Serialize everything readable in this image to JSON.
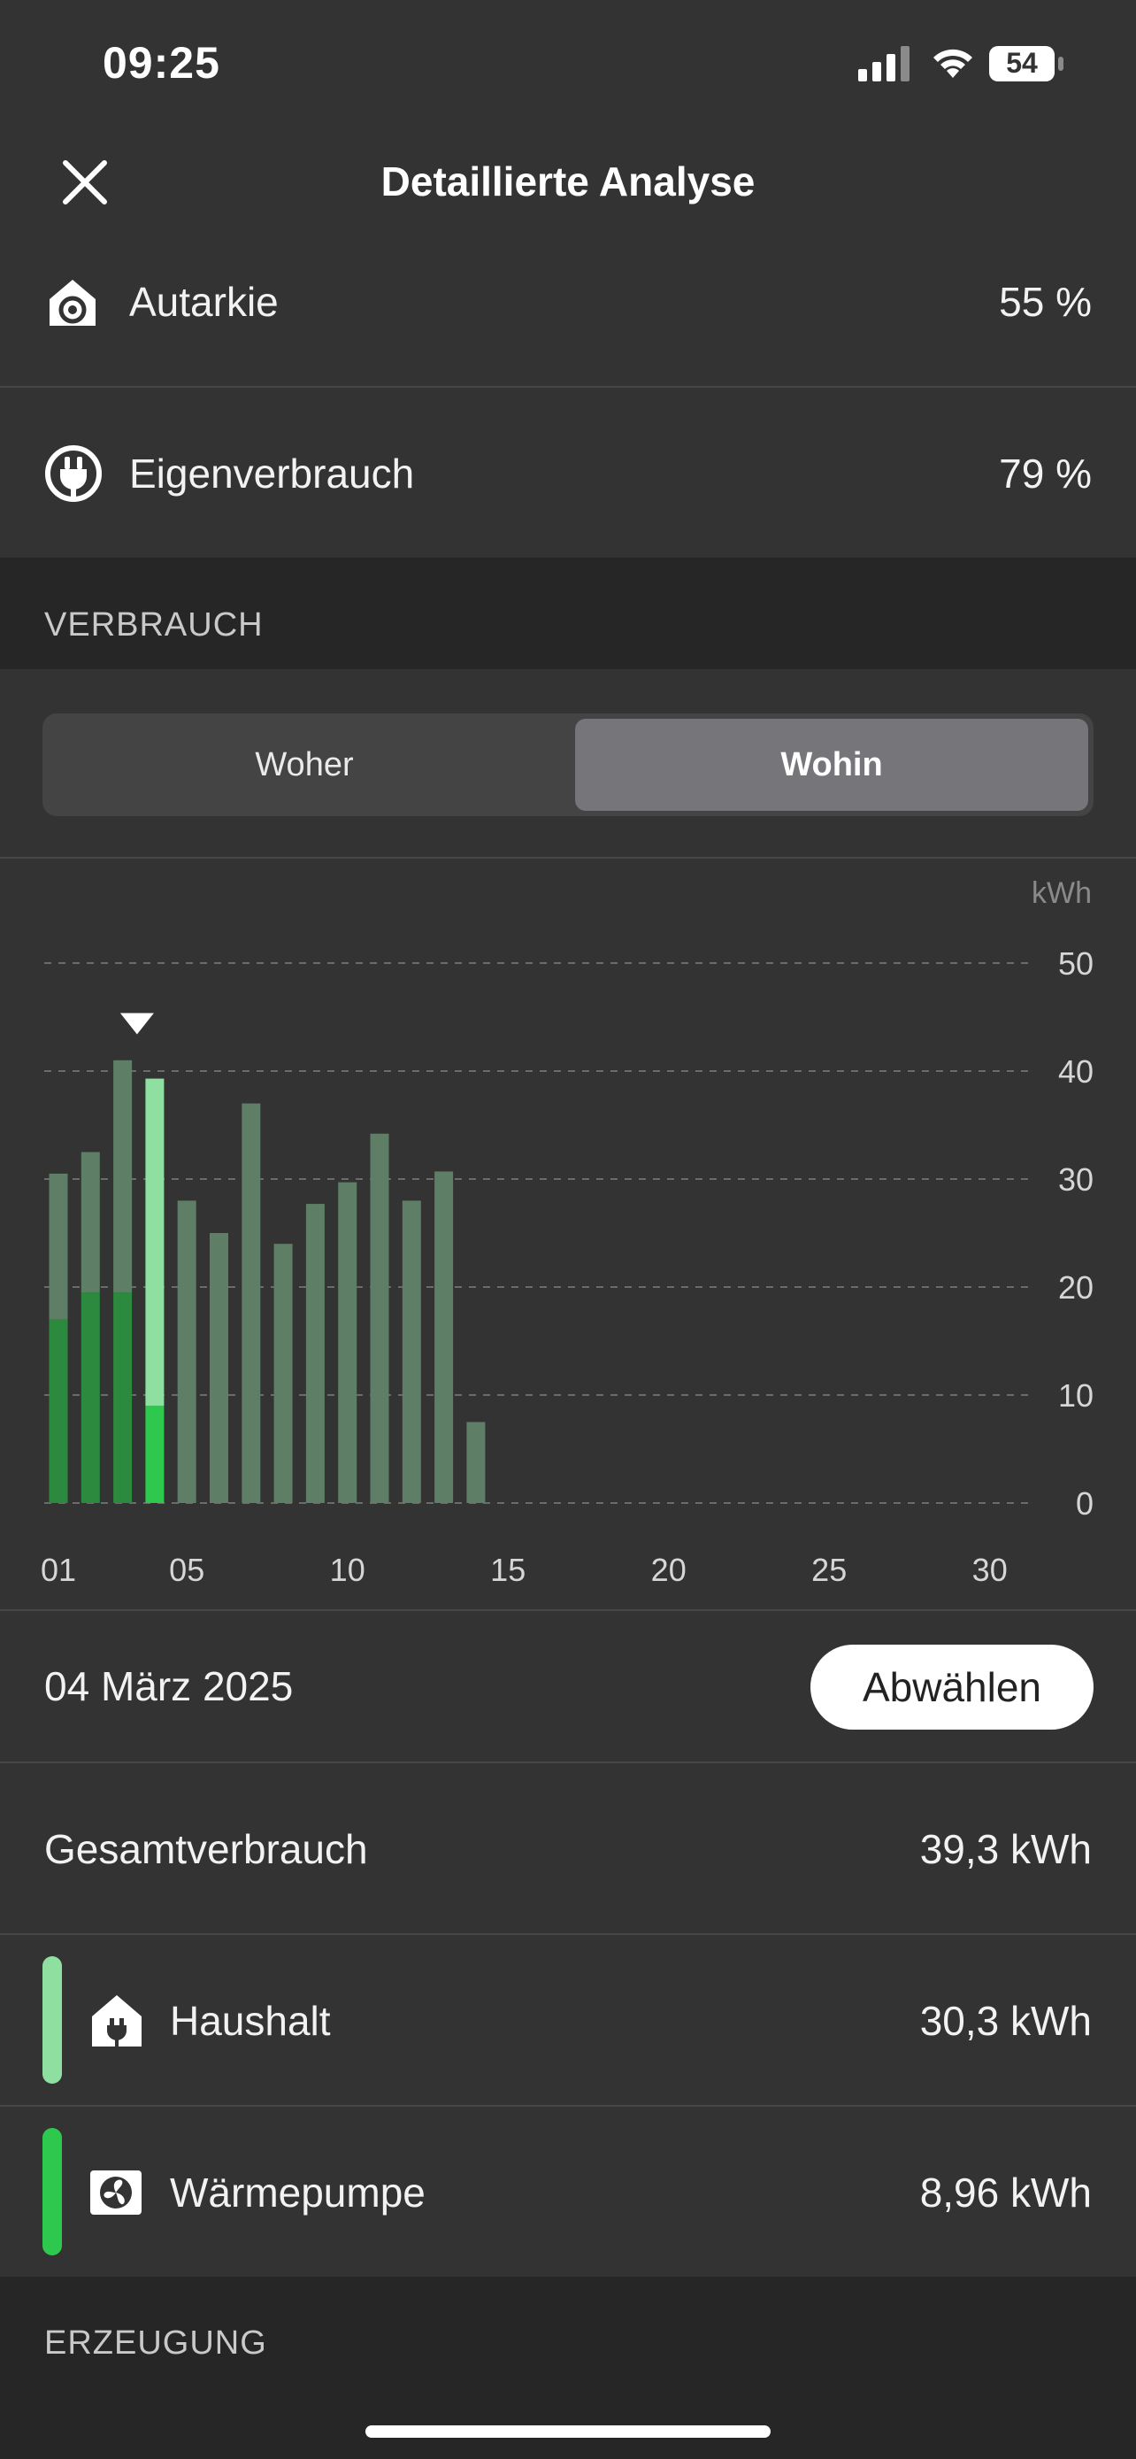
{
  "status_bar": {
    "time": "09:25",
    "battery": "54"
  },
  "header": {
    "title": "Detaillierte Analyse",
    "close_icon": "close-icon"
  },
  "metrics": [
    {
      "label": "Autarkie",
      "value": "55 %",
      "icon": "house-self-sufficiency-icon"
    },
    {
      "label": "Eigenverbrauch",
      "value": "79 %",
      "icon": "plug-icon"
    }
  ],
  "consumption": {
    "section_title": "VERBRAUCH",
    "segment": {
      "left": "Woher",
      "right": "Wohin",
      "selected": "Wohin"
    },
    "selected_date": "04 März 2025",
    "deselect_label": "Abwählen",
    "total_label": "Gesamtverbrauch",
    "total_value": "39,3 kWh",
    "items": [
      {
        "label": "Haushalt",
        "value": "30,3 kWh",
        "icon": "house-plug-icon",
        "color": "#8fe0a0"
      },
      {
        "label": "Wärmepumpe",
        "value": "8,96 kWh",
        "icon": "heat-pump-fan-icon",
        "color": "#2fc84e"
      }
    ]
  },
  "generation": {
    "section_title": "ERZEUGUNG"
  },
  "chart_data": {
    "type": "bar",
    "stacked": true,
    "unit": "kWh",
    "ylim": [
      0,
      50
    ],
    "y_ticks": [
      "0",
      "10",
      "20",
      "30",
      "40",
      "50"
    ],
    "x_ticks": [
      "01",
      "05",
      "10",
      "15",
      "20",
      "25",
      "30"
    ],
    "x_tick_days": [
      1,
      5,
      10,
      15,
      20,
      25,
      30
    ],
    "days": [
      1,
      2,
      3,
      4,
      5,
      6,
      7,
      8,
      9,
      10,
      11,
      12,
      13,
      14
    ],
    "selected_day": 4,
    "series": [
      {
        "values": [
          17,
          19.5,
          19.5,
          9,
          0,
          0,
          0,
          0,
          0,
          0,
          0,
          0,
          0,
          0
        ],
        "color": "#2b8a3e",
        "selected_color": "#2fc84e"
      },
      {
        "values": [
          13.5,
          13,
          21.5,
          30.3,
          28,
          25,
          37,
          24,
          27.7,
          29.7,
          34.2,
          28,
          30.7,
          7.5
        ],
        "color": "#5e7e66",
        "selected_color": "#8fe0a0"
      }
    ],
    "grid": "dashed",
    "grid_color": "#6b6b6b"
  }
}
